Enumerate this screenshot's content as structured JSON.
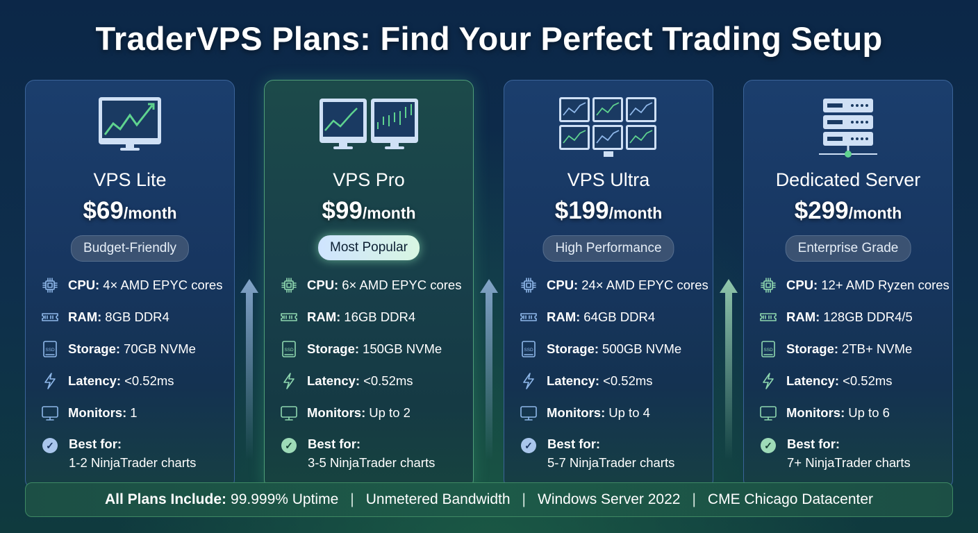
{
  "title": "TraderVPS Plans: Find Your Perfect Trading Setup",
  "plans": [
    {
      "name": "VPS Lite",
      "price": "$69",
      "period": "/month",
      "badge": "Budget-Friendly",
      "icon": "single-monitor-chart-icon",
      "cpu": "4× AMD EPYC cores",
      "ram": "8GB DDR4",
      "storage": "70GB NVMe",
      "latency": "<0.52ms",
      "monitors": "1",
      "best": "1-2 NinjaTrader charts"
    },
    {
      "name": "VPS Pro",
      "price": "$99",
      "period": "/month",
      "badge": "Most Popular",
      "icon": "dual-monitor-chart-icon",
      "cpu": "6× AMD EPYC cores",
      "ram": "16GB DDR4",
      "storage": "150GB NVMe",
      "latency": "<0.52ms",
      "monitors": "Up to 2",
      "best": "3-5 NinjaTrader charts"
    },
    {
      "name": "VPS Ultra",
      "price": "$199",
      "period": "/month",
      "badge": "High Performance",
      "icon": "six-monitor-wall-icon",
      "cpu": "24× AMD EPYC cores",
      "ram": "64GB DDR4",
      "storage": "500GB NVMe",
      "latency": "<0.52ms",
      "monitors": "Up to 4",
      "best": "5-7 NinjaTrader charts"
    },
    {
      "name": "Dedicated Server",
      "price": "$299",
      "period": "/month",
      "badge": "Enterprise Grade",
      "icon": "server-rack-icon",
      "cpu": "12+ AMD Ryzen cores",
      "ram": "128GB DDR4/5",
      "storage": "2TB+ NVMe",
      "latency": "<0.52ms",
      "monitors": "Up to 6",
      "best": "7+ NinjaTrader charts"
    }
  ],
  "labels": {
    "cpu": "CPU:",
    "ram": "RAM:",
    "storage": "Storage:",
    "latency": "Latency:",
    "monitors": "Monitors:",
    "best": "Best for:"
  },
  "footer": {
    "lead": "All Plans Include:",
    "items": [
      "99.999% Uptime",
      "Unmetered Bandwidth",
      "Windows Server 2022",
      "CME Chicago Datacenter"
    ],
    "separator": "|"
  },
  "colors": {
    "accent_green": "#5fd38f",
    "accent_blue": "#8fb8ea",
    "background": "#0e2f4c"
  }
}
